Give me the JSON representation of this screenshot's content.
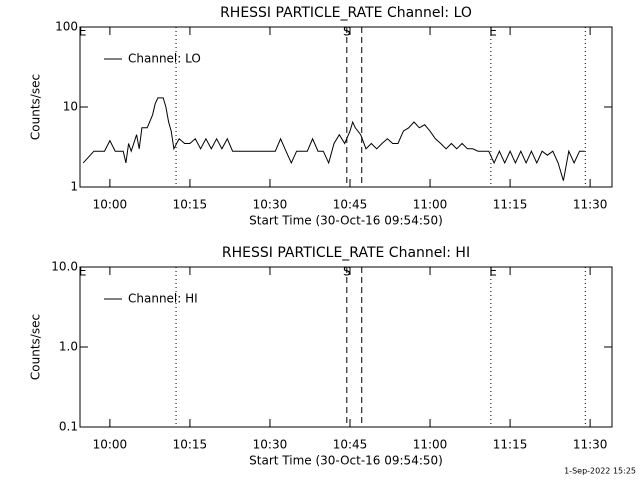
{
  "chart_data": [
    {
      "type": "line",
      "title": "RHESSI PARTICLE_RATE Channel: LO",
      "xlabel": "Start Time (30-Oct-16 09:54:50)",
      "ylabel": "Counts/sec",
      "log_y": true,
      "ylim": [
        1,
        100
      ],
      "yticks": [
        1,
        10,
        100
      ],
      "xlim": [
        594.4,
        694.1
      ],
      "xticks": [
        {
          "value": 600,
          "label": "10:00"
        },
        {
          "value": 615,
          "label": "10:15"
        },
        {
          "value": 630,
          "label": "10:30"
        },
        {
          "value": 645,
          "label": "10:45"
        },
        {
          "value": 660,
          "label": "11:00"
        },
        {
          "value": 675,
          "label": "11:15"
        },
        {
          "value": 690,
          "label": "11:30"
        }
      ],
      "legend": "upper left",
      "vlines": [
        {
          "x": 612.4,
          "style": "dotted"
        },
        {
          "x": 644.4,
          "style": "dashed"
        },
        {
          "x": 647.2,
          "style": "dashed"
        },
        {
          "x": 671.4,
          "style": "dotted"
        },
        {
          "x": 689.1,
          "style": "dotted"
        }
      ],
      "annotations": [
        {
          "text": "E",
          "x": 594.9
        },
        {
          "text": "S",
          "x": 644.4
        },
        {
          "text": "E",
          "x": 671.8
        }
      ],
      "x": [
        595,
        597,
        599,
        600,
        601,
        602.5,
        603,
        603.5,
        604,
        605,
        605.5,
        606,
        607,
        608,
        608.5,
        609,
        610,
        610.5,
        611,
        611.5,
        612,
        612.5,
        613,
        614,
        615,
        616,
        617,
        618,
        619,
        620,
        621,
        622,
        623,
        625,
        627,
        629,
        631,
        632,
        633,
        634,
        635,
        637,
        638,
        639,
        640,
        641,
        642,
        643,
        644,
        645,
        645.5,
        646,
        647,
        648,
        649,
        650,
        651,
        652,
        653,
        654,
        655,
        656,
        657,
        658,
        659,
        660,
        661,
        662,
        663,
        664,
        665,
        666,
        667,
        668,
        669,
        671,
        672,
        673,
        674,
        675,
        676,
        677,
        678,
        679,
        680,
        681,
        682,
        683,
        684,
        685,
        686,
        687,
        688,
        689
      ],
      "series": [
        {
          "name": "Channel: LO",
          "color": "#000000",
          "values": [
            2,
            2.8,
            2.8,
            3.8,
            2.8,
            2.8,
            2,
            3.5,
            2.8,
            4.5,
            3,
            5.5,
            5.5,
            8,
            11,
            13,
            13,
            10,
            6.5,
            5,
            3,
            3.5,
            4,
            3.5,
            3.5,
            4,
            3,
            4,
            3,
            4,
            3,
            4,
            2.8,
            2.8,
            2.8,
            2.8,
            2.8,
            4,
            2.8,
            2,
            2.8,
            2.8,
            4,
            2.8,
            2.8,
            2,
            3.5,
            4.5,
            3.5,
            5,
            6.5,
            5.5,
            4.5,
            3,
            3.5,
            3,
            3.5,
            4,
            3.5,
            3.5,
            5,
            5.5,
            6.5,
            5.5,
            6,
            5,
            4,
            3.5,
            3,
            3.5,
            3,
            3.5,
            3,
            3,
            2.8,
            2.8,
            2,
            2.8,
            2,
            2.8,
            2,
            2.8,
            2,
            2.8,
            2,
            2.8,
            2.5,
            2.8,
            2,
            1.2,
            2.8,
            2,
            2.8,
            2.8
          ]
        }
      ]
    },
    {
      "type": "line",
      "title": "RHESSI PARTICLE_RATE Channel: HI",
      "xlabel": "Start Time (30-Oct-16 09:54:50)",
      "ylabel": "Counts/sec",
      "log_y": true,
      "ylim": [
        0.1,
        10
      ],
      "yticks": [
        0.1,
        {
          "value": 1,
          "label": "1.0"
        },
        {
          "value": 10,
          "label": "10.0"
        }
      ],
      "xlim": [
        594.4,
        694.1
      ],
      "xticks": [
        {
          "value": 600,
          "label": "10:00"
        },
        {
          "value": 615,
          "label": "10:15"
        },
        {
          "value": 630,
          "label": "10:30"
        },
        {
          "value": 645,
          "label": "10:45"
        },
        {
          "value": 660,
          "label": "11:00"
        },
        {
          "value": 675,
          "label": "11:15"
        },
        {
          "value": 690,
          "label": "11:30"
        }
      ],
      "legend": "upper left",
      "vlines": [
        {
          "x": 612.4,
          "style": "dotted"
        },
        {
          "x": 644.4,
          "style": "dashed"
        },
        {
          "x": 647.2,
          "style": "dashed"
        },
        {
          "x": 671.4,
          "style": "dotted"
        },
        {
          "x": 689.1,
          "style": "dotted"
        }
      ],
      "annotations": [
        {
          "text": "E",
          "x": 594.9
        },
        {
          "text": "S",
          "x": 644.4
        },
        {
          "text": "E",
          "x": 671.8
        }
      ],
      "x": [],
      "series": [
        {
          "name": "Channel: HI",
          "color": "#000000",
          "values": []
        }
      ]
    }
  ],
  "footer": "1-Sep-2022 15:25"
}
